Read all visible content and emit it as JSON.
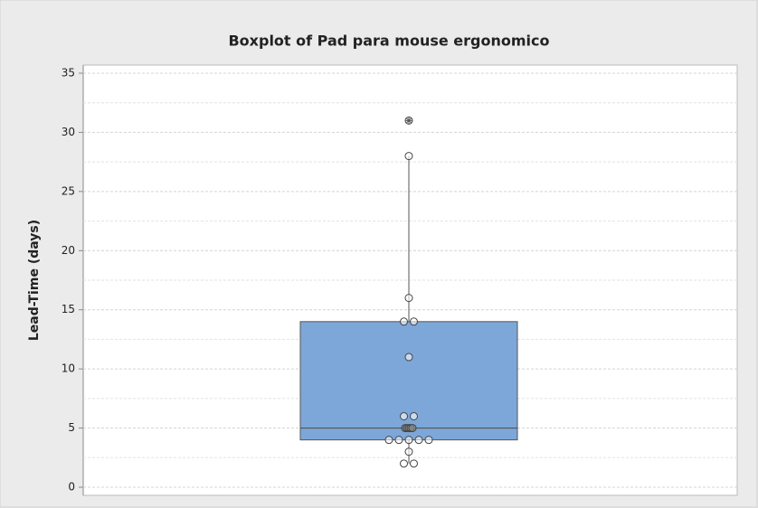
{
  "chart_data": {
    "type": "box",
    "title": "Boxplot of Pad para mouse ergonomico",
    "y_label": "Lead-Time (days)",
    "whisker_low": 2,
    "q1": 4,
    "median": 5,
    "q3": 14,
    "whisker_high": 28,
    "outliers": [
      31
    ],
    "points": [
      2,
      2,
      3,
      4,
      4,
      4,
      4,
      4,
      5,
      5,
      5,
      5,
      5,
      6,
      6,
      11,
      14,
      14,
      16,
      28
    ],
    "color": "#7da7d8",
    "ylim": [
      0,
      35
    ],
    "yticks": [
      0,
      5,
      10,
      15,
      20,
      25,
      30,
      35
    ],
    "minor_yticks": [
      2.5,
      7.5,
      12.5,
      17.5,
      22.5,
      27.5,
      32.5
    ],
    "grid": true
  }
}
